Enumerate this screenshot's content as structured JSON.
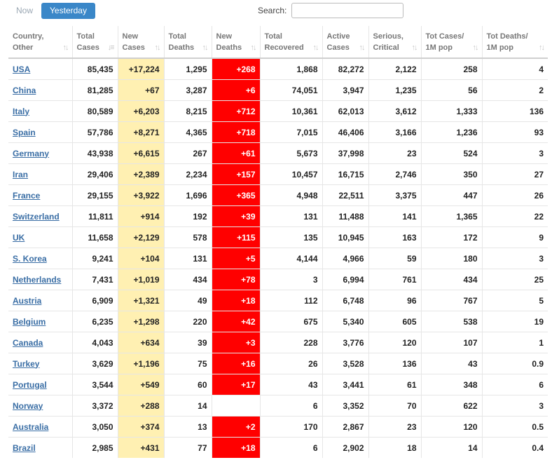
{
  "tabs": {
    "now": "Now",
    "yesterday": "Yesterday"
  },
  "search": {
    "label": "Search:",
    "value": ""
  },
  "columns": [
    {
      "l1": "Country,",
      "l2": "Other"
    },
    {
      "l1": "Total",
      "l2": "Cases"
    },
    {
      "l1": "New",
      "l2": "Cases"
    },
    {
      "l1": "Total",
      "l2": "Deaths"
    },
    {
      "l1": "New",
      "l2": "Deaths"
    },
    {
      "l1": "Total",
      "l2": "Recovered"
    },
    {
      "l1": "Active",
      "l2": "Cases"
    },
    {
      "l1": "Serious,",
      "l2": "Critical"
    },
    {
      "l1": "Tot Cases/",
      "l2": "1M pop"
    },
    {
      "l1": "Tot Deaths/",
      "l2": "1M pop"
    }
  ],
  "colors": {
    "new_cases_bg": "#fff0b2",
    "new_deaths_bg": "#ff0000",
    "active_tab": "#3a87c8"
  },
  "rows": [
    [
      "USA",
      "85,435",
      "+17,224",
      "1,295",
      "+268",
      "1,868",
      "82,272",
      "2,122",
      "258",
      "4"
    ],
    [
      "China",
      "81,285",
      "+67",
      "3,287",
      "+6",
      "74,051",
      "3,947",
      "1,235",
      "56",
      "2"
    ],
    [
      "Italy",
      "80,589",
      "+6,203",
      "8,215",
      "+712",
      "10,361",
      "62,013",
      "3,612",
      "1,333",
      "136"
    ],
    [
      "Spain",
      "57,786",
      "+8,271",
      "4,365",
      "+718",
      "7,015",
      "46,406",
      "3,166",
      "1,236",
      "93"
    ],
    [
      "Germany",
      "43,938",
      "+6,615",
      "267",
      "+61",
      "5,673",
      "37,998",
      "23",
      "524",
      "3"
    ],
    [
      "Iran",
      "29,406",
      "+2,389",
      "2,234",
      "+157",
      "10,457",
      "16,715",
      "2,746",
      "350",
      "27"
    ],
    [
      "France",
      "29,155",
      "+3,922",
      "1,696",
      "+365",
      "4,948",
      "22,511",
      "3,375",
      "447",
      "26"
    ],
    [
      "Switzerland",
      "11,811",
      "+914",
      "192",
      "+39",
      "131",
      "11,488",
      "141",
      "1,365",
      "22"
    ],
    [
      "UK",
      "11,658",
      "+2,129",
      "578",
      "+115",
      "135",
      "10,945",
      "163",
      "172",
      "9"
    ],
    [
      "S. Korea",
      "9,241",
      "+104",
      "131",
      "+5",
      "4,144",
      "4,966",
      "59",
      "180",
      "3"
    ],
    [
      "Netherlands",
      "7,431",
      "+1,019",
      "434",
      "+78",
      "3",
      "6,994",
      "761",
      "434",
      "25"
    ],
    [
      "Austria",
      "6,909",
      "+1,321",
      "49",
      "+18",
      "112",
      "6,748",
      "96",
      "767",
      "5"
    ],
    [
      "Belgium",
      "6,235",
      "+1,298",
      "220",
      "+42",
      "675",
      "5,340",
      "605",
      "538",
      "19"
    ],
    [
      "Canada",
      "4,043",
      "+634",
      "39",
      "+3",
      "228",
      "3,776",
      "120",
      "107",
      "1"
    ],
    [
      "Turkey",
      "3,629",
      "+1,196",
      "75",
      "+16",
      "26",
      "3,528",
      "136",
      "43",
      "0.9"
    ],
    [
      "Portugal",
      "3,544",
      "+549",
      "60",
      "+17",
      "43",
      "3,441",
      "61",
      "348",
      "6"
    ],
    [
      "Norway",
      "3,372",
      "+288",
      "14",
      "",
      "6",
      "3,352",
      "70",
      "622",
      "3"
    ],
    [
      "Australia",
      "3,050",
      "+374",
      "13",
      "+2",
      "170",
      "2,867",
      "23",
      "120",
      "0.5"
    ],
    [
      "Brazil",
      "2,985",
      "+431",
      "77",
      "+18",
      "6",
      "2,902",
      "18",
      "14",
      "0.4"
    ]
  ]
}
